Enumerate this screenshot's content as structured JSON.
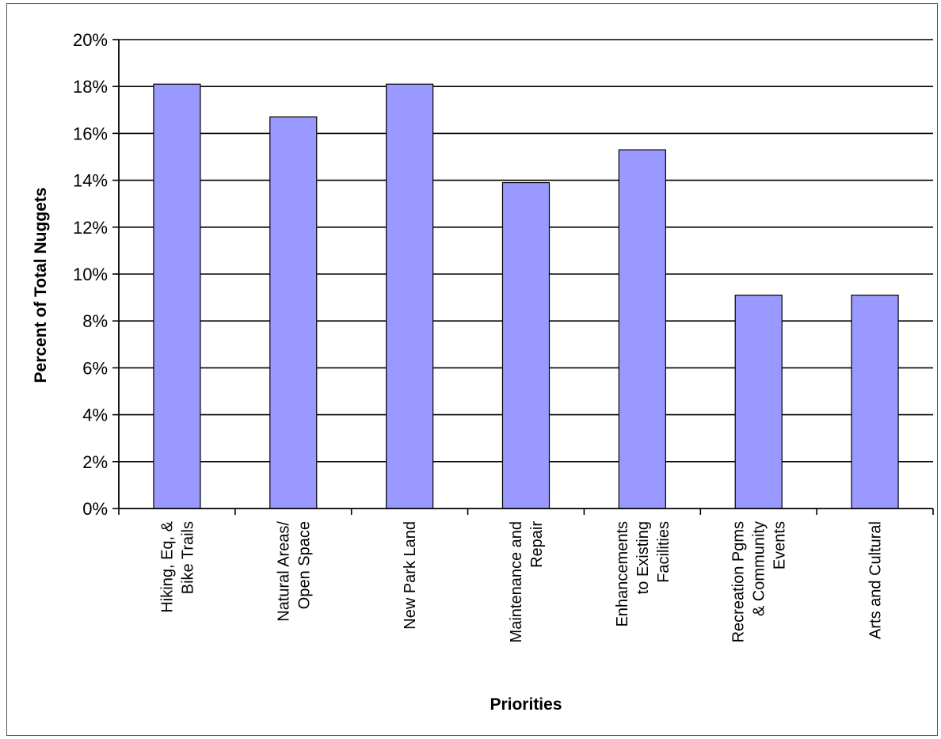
{
  "chart_data": {
    "type": "bar",
    "title": "",
    "xlabel": "Priorities",
    "ylabel": "Percent of Total Nuggets",
    "categories": [
      [
        "Hiking, Eq, &",
        "Bike Trails"
      ],
      [
        "Natural Areas/",
        "Open Space"
      ],
      [
        "New Park Land"
      ],
      [
        "Maintenance and",
        "Repair"
      ],
      [
        "Enhancements",
        "to Existing",
        "Facilities"
      ],
      [
        "Recreation Pgms",
        "& Community",
        "Events"
      ],
      [
        "Arts and Cultural"
      ]
    ],
    "values": [
      18.1,
      16.7,
      18.1,
      13.9,
      15.3,
      9.1,
      9.1
    ],
    "ylim": [
      0,
      20
    ],
    "yticks": [
      0,
      2,
      4,
      6,
      8,
      10,
      12,
      14,
      16,
      18,
      20
    ],
    "ytick_labels": [
      "0%",
      "2%",
      "4%",
      "6%",
      "8%",
      "10%",
      "12%",
      "14%",
      "16%",
      "18%",
      "20%"
    ],
    "grid": true,
    "legend": "none",
    "colors": {
      "bar_fill": "#9999ff",
      "bar_stroke": "#000000",
      "grid": "#000000"
    }
  }
}
